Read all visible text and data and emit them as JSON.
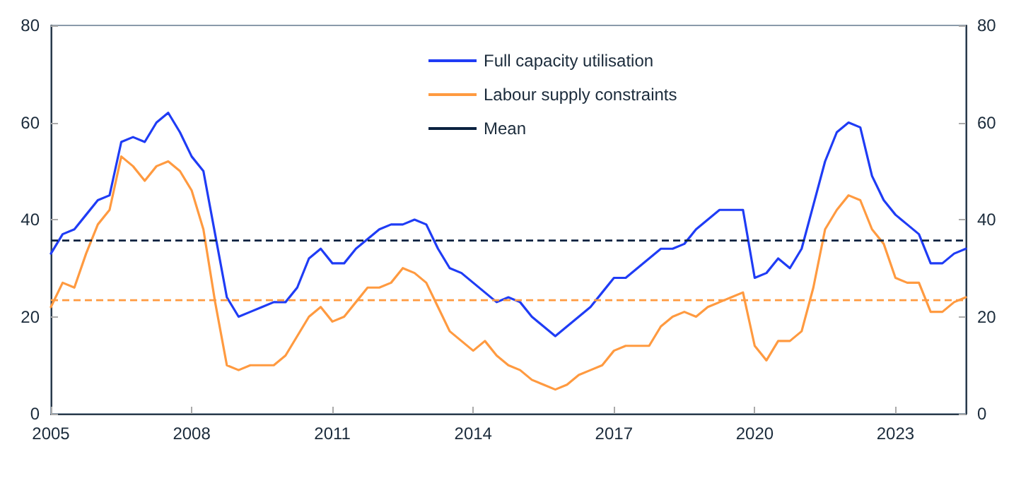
{
  "chart_data": {
    "type": "line",
    "x": [
      2005,
      2005.25,
      2005.5,
      2005.75,
      2006,
      2006.25,
      2006.5,
      2006.75,
      2007,
      2007.25,
      2007.5,
      2007.75,
      2008,
      2008.25,
      2008.5,
      2008.75,
      2009,
      2009.25,
      2009.5,
      2009.75,
      2010,
      2010.25,
      2010.5,
      2010.75,
      2011,
      2011.25,
      2011.5,
      2011.75,
      2012,
      2012.25,
      2012.5,
      2012.75,
      2013,
      2013.25,
      2013.5,
      2013.75,
      2014,
      2014.25,
      2014.5,
      2014.75,
      2015,
      2015.25,
      2015.5,
      2015.75,
      2016,
      2016.25,
      2016.5,
      2016.75,
      2017,
      2017.25,
      2017.5,
      2017.75,
      2018,
      2018.25,
      2018.5,
      2018.75,
      2019,
      2019.25,
      2019.5,
      2019.75,
      2020,
      2020.25,
      2020.5,
      2020.75,
      2021,
      2021.25,
      2021.5,
      2021.75,
      2022,
      2022.25,
      2022.5,
      2022.75,
      2023,
      2023.25,
      2023.5,
      2023.75,
      2024,
      2024.25,
      2024.5
    ],
    "series": [
      {
        "name": "Full capacity utilisation",
        "color": "#1f3cf5",
        "values": [
          33,
          37,
          38,
          41,
          44,
          45,
          56,
          57,
          56,
          60,
          62,
          58,
          53,
          50,
          37,
          24,
          20,
          21,
          22,
          23,
          23,
          26,
          32,
          34,
          31,
          31,
          34,
          36,
          38,
          39,
          39,
          40,
          39,
          34,
          30,
          29,
          27,
          25,
          23,
          24,
          23,
          20,
          18,
          16,
          18,
          20,
          22,
          25,
          28,
          28,
          30,
          32,
          34,
          34,
          35,
          38,
          40,
          42,
          42,
          42,
          28,
          29,
          32,
          30,
          34,
          43,
          52,
          58,
          60,
          59,
          49,
          44,
          41,
          39,
          37,
          31,
          31,
          33,
          34
        ]
      },
      {
        "name": "Labour supply constraints",
        "color": "#ff9a40",
        "values": [
          22,
          27,
          26,
          33,
          39,
          42,
          53,
          51,
          48,
          51,
          52,
          50,
          46,
          38,
          23,
          10,
          9,
          10,
          10,
          10,
          12,
          16,
          20,
          22,
          19,
          20,
          23,
          26,
          26,
          27,
          30,
          29,
          27,
          22,
          17,
          15,
          13,
          15,
          12,
          10,
          9,
          7,
          6,
          5,
          6,
          8,
          9,
          10,
          13,
          14,
          14,
          14,
          18,
          20,
          21,
          20,
          22,
          23,
          24,
          25,
          14,
          11,
          15,
          15,
          17,
          26,
          38,
          42,
          45,
          44,
          38,
          35,
          28,
          27,
          27,
          21,
          21,
          23,
          24
        ]
      }
    ],
    "ref_lines": [
      {
        "axis": "y",
        "value": 35.7,
        "label": "Mean",
        "color": "#0a2240",
        "line_style": "dashed"
      },
      {
        "axis": "y",
        "value": 23.4,
        "color": "#ff9a40",
        "line_style": "dashed"
      }
    ],
    "xlim": [
      2005,
      2024.5
    ],
    "xticks": [
      2005,
      2008,
      2011,
      2014,
      2017,
      2020,
      2023
    ],
    "ylim": [
      0,
      80
    ],
    "yticks": [
      0,
      20,
      40,
      60,
      80
    ],
    "y2lim": [
      0,
      80
    ],
    "y2ticks": [
      0,
      20,
      40,
      60,
      80
    ],
    "grid": false,
    "legend": "top",
    "marker": "none",
    "line_style": "solid"
  }
}
